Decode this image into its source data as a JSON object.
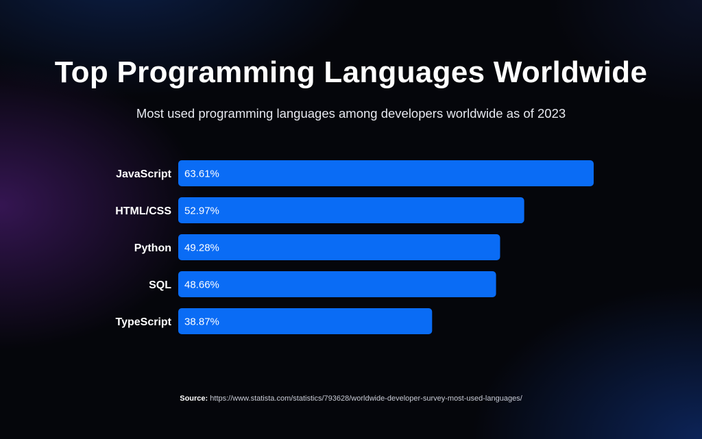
{
  "header": {
    "title": "Top Programming Languages Worldwide",
    "subtitle": "Most used programming languages among developers worldwide as of 2023"
  },
  "footer": {
    "source_label": "Source:",
    "source_url": "https://www.statista.com/statistics/793628/worldwide-developer-survey-most-used-languages/"
  },
  "colors": {
    "bar": "#0a6cf5",
    "background": "#05060b",
    "text": "#ffffff"
  },
  "chart_data": {
    "type": "bar",
    "orientation": "horizontal",
    "title": "Top Programming Languages Worldwide",
    "subtitle": "Most used programming languages among developers worldwide as of 2023",
    "categories": [
      "JavaScript",
      "HTML/CSS",
      "Python",
      "SQL",
      "TypeScript"
    ],
    "values": [
      63.61,
      52.97,
      49.28,
      48.66,
      38.87
    ],
    "value_labels": [
      "63.61%",
      "52.97%",
      "49.28%",
      "48.66%",
      "38.87%"
    ],
    "unit": "%",
    "xlabel": "",
    "ylabel": "",
    "xlim": [
      0,
      63.61
    ],
    "grid": false,
    "legend": "none"
  }
}
